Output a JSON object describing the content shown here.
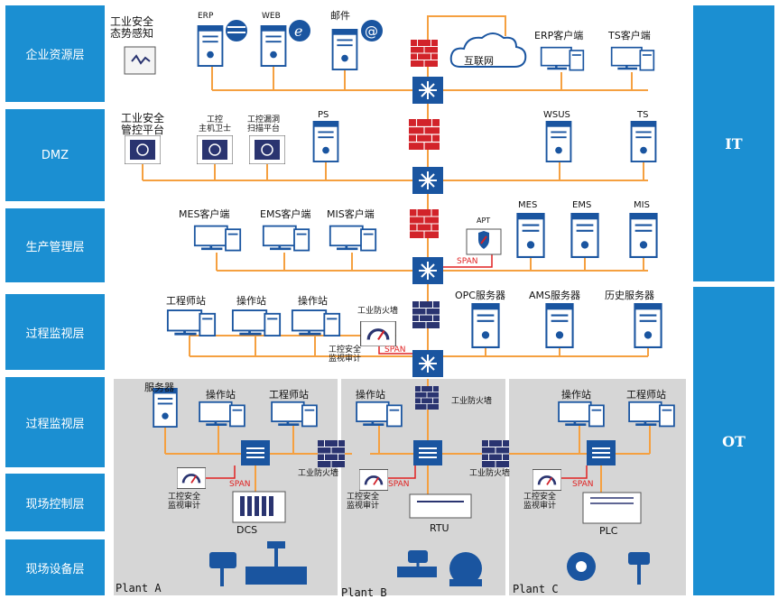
{
  "layers": {
    "enterprise": "企业资源层",
    "dmz": "DMZ",
    "production": "生产管理层",
    "process1": "过程监视层",
    "process2": "过程监视层",
    "field_control": "现场控制层",
    "field_device": "现场设备层"
  },
  "side": {
    "it": "IT",
    "ot": "OT"
  },
  "enterprise": {
    "situation": "工业安全\n态势感知",
    "erp": "ERP",
    "web": "WEB",
    "mail": "邮件",
    "internet": "互联网",
    "erp_client": "ERP客户端",
    "ts_client": "TS客户端"
  },
  "dmz": {
    "mgmt": "工业安全\n管控平台",
    "host_guard": "工控\n主机卫士",
    "vuln_scan": "工控漏洞\n扫描平台",
    "ps": "PS",
    "wsus": "WSUS",
    "ts": "TS"
  },
  "production": {
    "mes_client": "MES客户端",
    "ems_client": "EMS客户端",
    "mis_client": "MIS客户端",
    "apt": "APT",
    "mes": "MES",
    "ems": "EMS",
    "mis": "MIS",
    "span": "SPAN"
  },
  "process": {
    "eng_station": "工程师站",
    "op_station1": "操作站",
    "op_station2": "操作站",
    "ind_firewall": "工业防火墙",
    "audit": "工控安全\n监视审计",
    "span": "SPAN",
    "opc": "OPC服务器",
    "ams": "AMS服务器",
    "history": "历史服务器"
  },
  "plants": {
    "a": {
      "name": "Plant A",
      "server": "服务器",
      "op": "操作站",
      "eng": "工程师站",
      "span": "SPAN",
      "audit": "工控安全\n监视审计",
      "device": "DCS",
      "firewall": "工业防火墙"
    },
    "b": {
      "name": "Plant B",
      "op": "操作站",
      "firewall_top": "工业防火墙",
      "span": "SPAN",
      "audit": "工控安全\n监视审计",
      "device": "RTU",
      "firewall": "工业防火墙"
    },
    "c": {
      "name": "Plant C",
      "op": "操作站",
      "eng": "工程师站",
      "span": "SPAN",
      "audit": "工控安全\n监视审计",
      "device": "PLC"
    }
  },
  "colors": {
    "layer": "#1b8fd2",
    "line": "#f5a040",
    "device": "#1a55a0",
    "firewall": "#d2232a",
    "span": "#e02020"
  }
}
